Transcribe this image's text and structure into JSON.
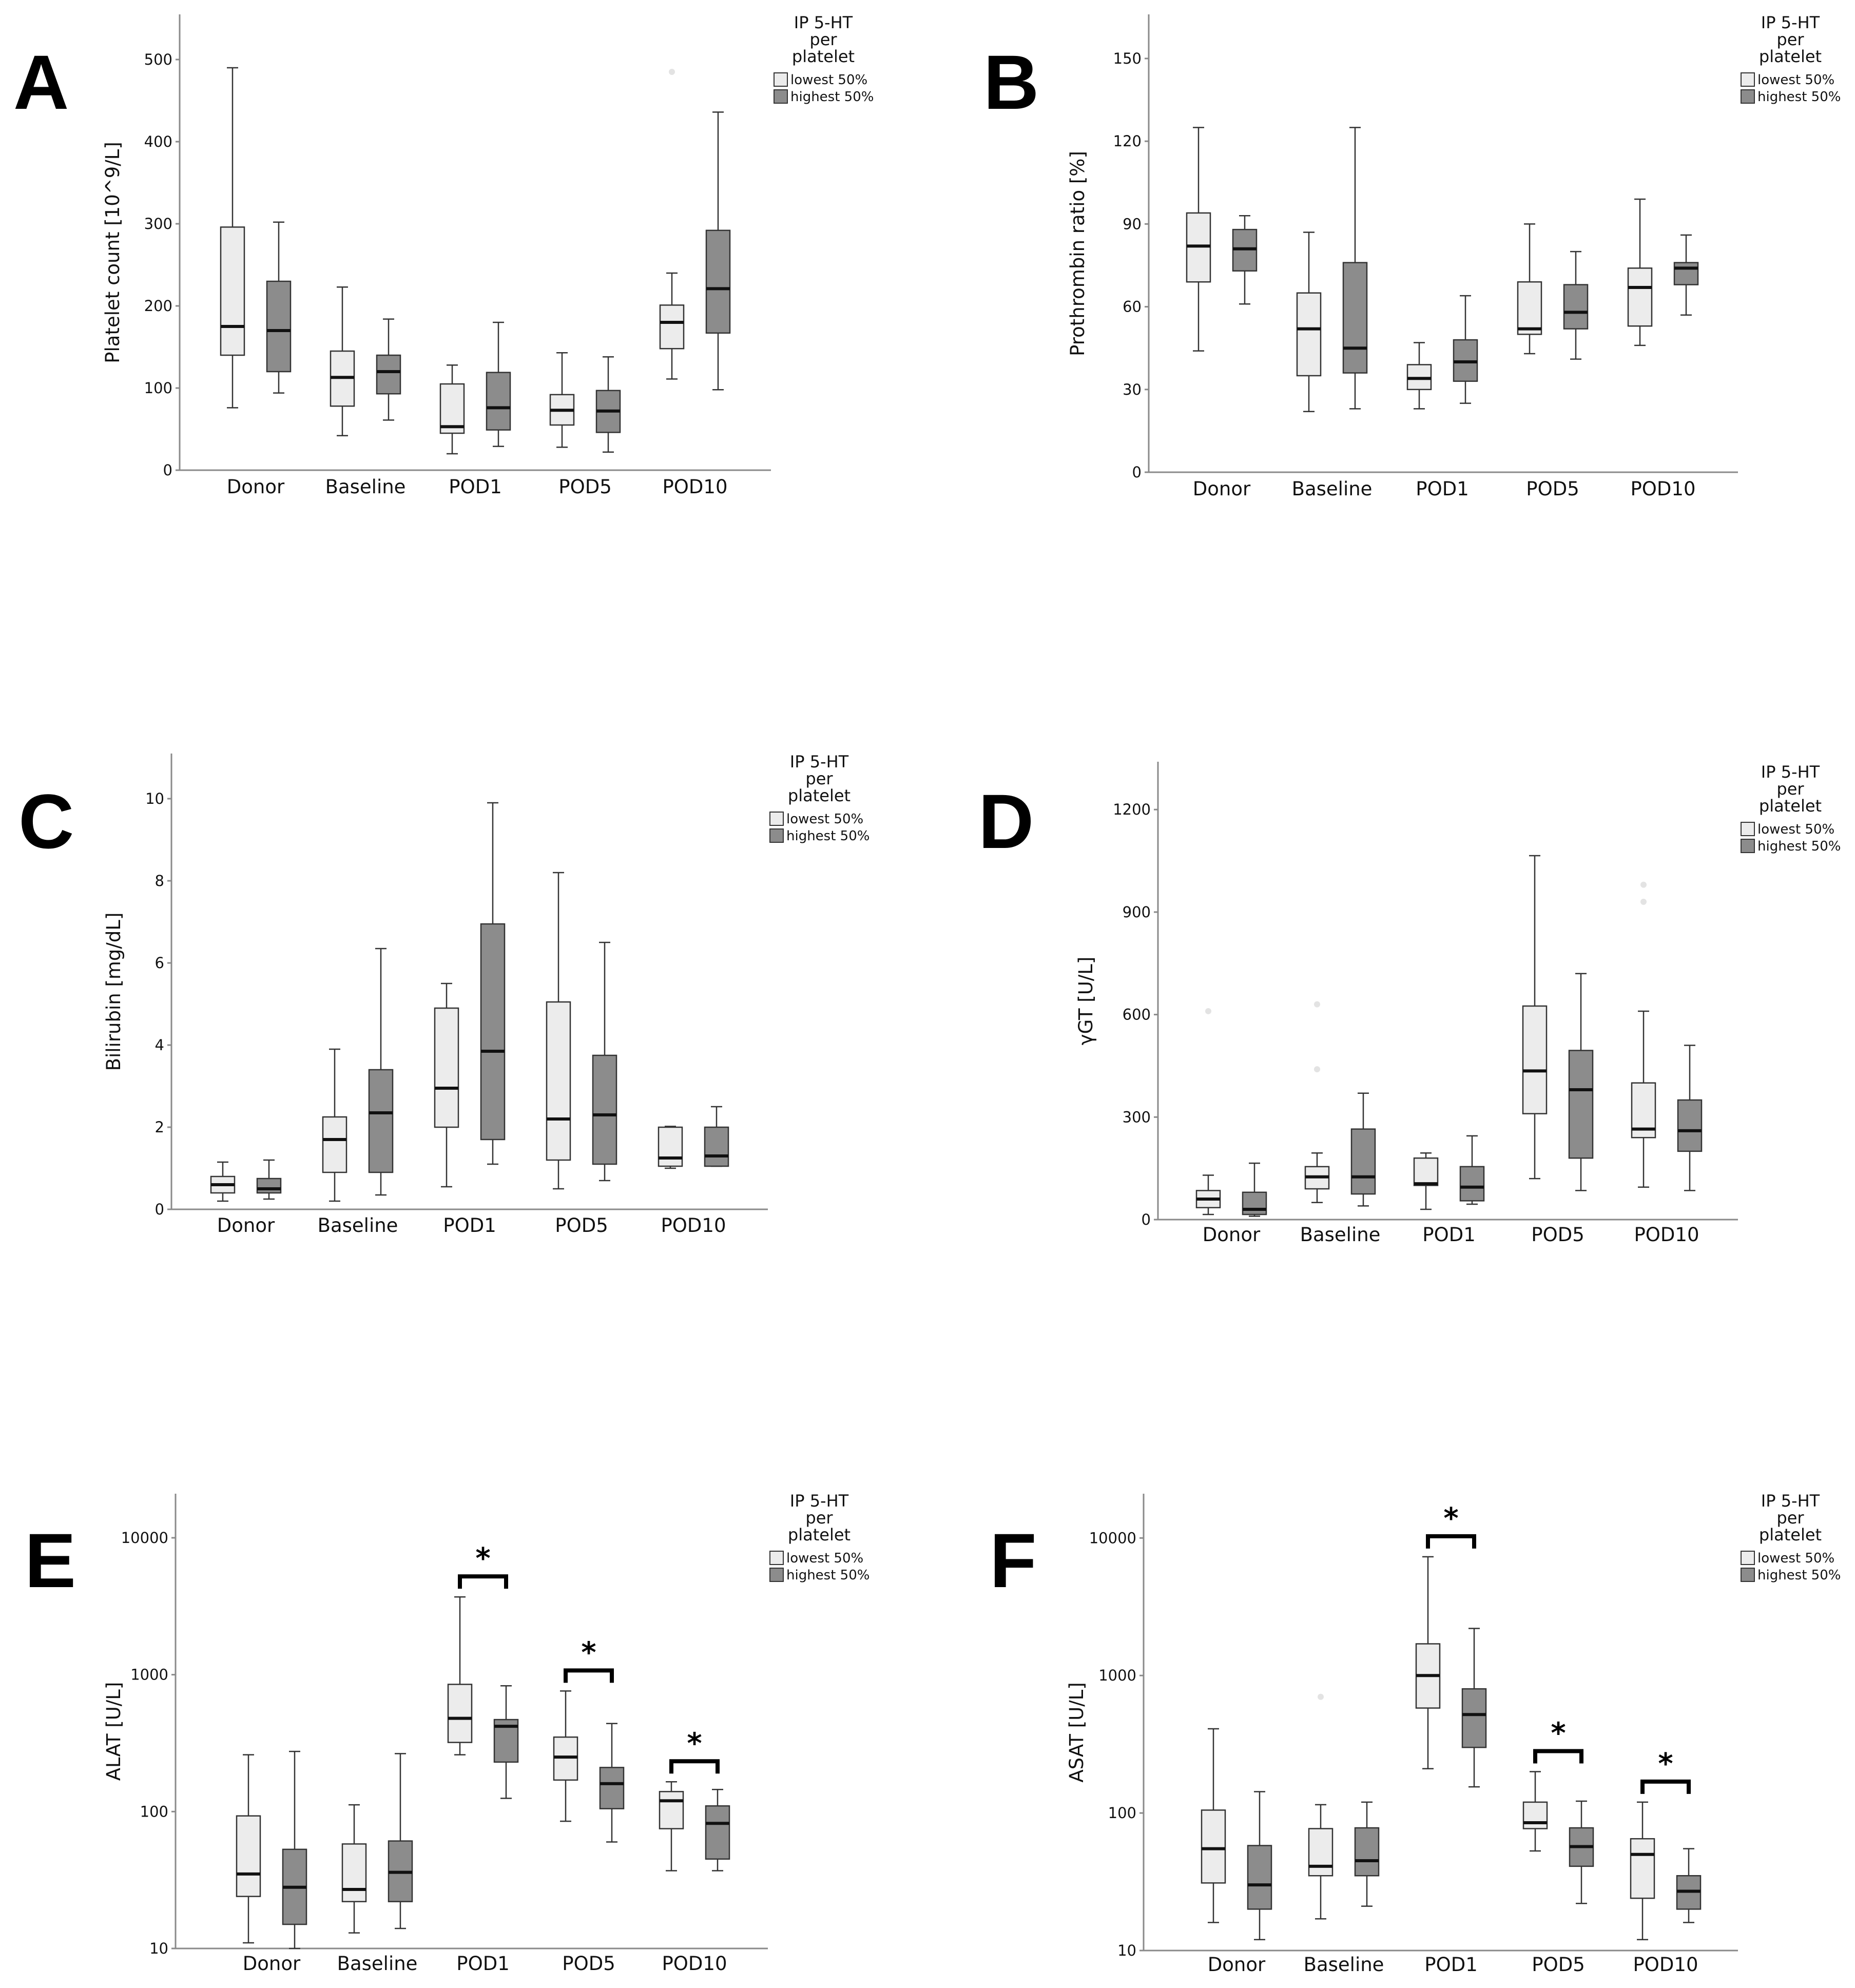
{
  "legend": {
    "title_lines": [
      "IP 5-HT",
      "per",
      "platelet"
    ],
    "entries": [
      "lowest 50%",
      "highest 50%"
    ]
  },
  "colors": {
    "lowest": "#ececec",
    "highest": "#8c8c8c"
  },
  "chart_data": [
    {
      "id": "A",
      "type": "boxplot",
      "categories": [
        "Donor",
        "Baseline",
        "POD1",
        "POD5",
        "POD10"
      ],
      "ylabel": "Platelet count [10^9/L]",
      "scale": "linear",
      "ylim": [
        0,
        555
      ],
      "yticks": [
        0,
        100,
        200,
        300,
        400,
        500
      ],
      "ytick_labels": [
        "0",
        "100",
        "200",
        "300",
        "400",
        "500"
      ],
      "series": [
        {
          "name": "lowest 50%",
          "boxes": [
            {
              "min": 76,
              "q1": 140,
              "median": 175,
              "q3": 296,
              "max": 490
            },
            {
              "min": 42,
              "q1": 78,
              "median": 113,
              "q3": 145,
              "max": 223
            },
            {
              "min": 20,
              "q1": 45,
              "median": 53,
              "q3": 105,
              "max": 128
            },
            {
              "min": 28,
              "q1": 55,
              "median": 73,
              "q3": 92,
              "max": 143
            },
            {
              "min": 111,
              "q1": 148,
              "median": 180,
              "q3": 201,
              "max": 240
            }
          ]
        },
        {
          "name": "highest 50%",
          "boxes": [
            {
              "min": 94,
              "q1": 120,
              "median": 170,
              "q3": 230,
              "max": 302
            },
            {
              "min": 61,
              "q1": 93,
              "median": 120,
              "q3": 140,
              "max": 184
            },
            {
              "min": 29,
              "q1": 49,
              "median": 76,
              "q3": 119,
              "max": 180
            },
            {
              "min": 22,
              "q1": 46,
              "median": 72,
              "q3": 97,
              "max": 138
            },
            {
              "min": 98,
              "q1": 167,
              "median": 221,
              "q3": 292,
              "max": 436
            }
          ]
        }
      ],
      "outliers": [
        {
          "category": "POD10",
          "series": "lowest 50%",
          "value": 485
        }
      ],
      "significance": []
    },
    {
      "id": "B",
      "type": "boxplot",
      "categories": [
        "Donor",
        "Baseline",
        "POD1",
        "POD5",
        "POD10"
      ],
      "ylabel": "Prothrombin ratio [%]",
      "scale": "linear",
      "ylim": [
        0,
        166
      ],
      "yticks": [
        0,
        30,
        60,
        90,
        120,
        150
      ],
      "ytick_labels": [
        "0",
        "30",
        "60",
        "90",
        "120",
        "150"
      ],
      "series": [
        {
          "name": "lowest 50%",
          "boxes": [
            {
              "min": 44,
              "q1": 69,
              "median": 82,
              "q3": 94,
              "max": 125
            },
            {
              "min": 22,
              "q1": 35,
              "median": 52,
              "q3": 65,
              "max": 87
            },
            {
              "min": 23,
              "q1": 30,
              "median": 34,
              "q3": 39,
              "max": 47
            },
            {
              "min": 43,
              "q1": 50,
              "median": 52,
              "q3": 69,
              "max": 90
            },
            {
              "min": 46,
              "q1": 53,
              "median": 67,
              "q3": 74,
              "max": 99
            }
          ]
        },
        {
          "name": "highest 50%",
          "boxes": [
            {
              "min": 61,
              "q1": 73,
              "median": 81,
              "q3": 88,
              "max": 93
            },
            {
              "min": 23,
              "q1": 36,
              "median": 45,
              "q3": 76,
              "max": 125
            },
            {
              "min": 25,
              "q1": 33,
              "median": 40,
              "q3": 48,
              "max": 64
            },
            {
              "min": 41,
              "q1": 52,
              "median": 58,
              "q3": 68,
              "max": 80
            },
            {
              "min": 57,
              "q1": 68,
              "median": 74,
              "q3": 76,
              "max": 86
            }
          ]
        }
      ],
      "outliers": [],
      "significance": []
    },
    {
      "id": "C",
      "type": "boxplot",
      "categories": [
        "Donor",
        "Baseline",
        "POD1",
        "POD5",
        "POD10"
      ],
      "ylabel": "Bilirubin [mg/dL]",
      "scale": "linear",
      "ylim": [
        0,
        11.1
      ],
      "yticks": [
        0,
        2,
        4,
        6,
        8,
        10
      ],
      "ytick_labels": [
        "0",
        "2",
        "4",
        "6",
        "8",
        "10"
      ],
      "series": [
        {
          "name": "lowest 50%",
          "boxes": [
            {
              "min": 0.2,
              "q1": 0.4,
              "median": 0.6,
              "q3": 0.8,
              "max": 1.15
            },
            {
              "min": 0.2,
              "q1": 0.9,
              "median": 1.7,
              "q3": 2.25,
              "max": 3.9
            },
            {
              "min": 0.55,
              "q1": 2.0,
              "median": 2.95,
              "q3": 4.9,
              "max": 5.5
            },
            {
              "min": 0.5,
              "q1": 1.2,
              "median": 2.2,
              "q3": 5.05,
              "max": 8.2
            },
            {
              "min": 1.0,
              "q1": 1.05,
              "median": 1.25,
              "q3": 2.0,
              "max": 2.02
            }
          ]
        },
        {
          "name": "highest 50%",
          "boxes": [
            {
              "min": 0.25,
              "q1": 0.4,
              "median": 0.5,
              "q3": 0.75,
              "max": 1.2
            },
            {
              "min": 0.35,
              "q1": 0.9,
              "median": 2.35,
              "q3": 3.4,
              "max": 6.35
            },
            {
              "min": 1.1,
              "q1": 1.7,
              "median": 3.85,
              "q3": 6.95,
              "max": 9.9
            },
            {
              "min": 0.7,
              "q1": 1.1,
              "median": 2.3,
              "q3": 3.75,
              "max": 6.5
            },
            {
              "min": 1.05,
              "q1": 1.05,
              "median": 1.3,
              "q3": 2.0,
              "max": 2.5
            }
          ]
        }
      ],
      "outliers": [],
      "significance": []
    },
    {
      "id": "D",
      "type": "boxplot",
      "categories": [
        "Donor",
        "Baseline",
        "POD1",
        "POD5",
        "POD10"
      ],
      "ylabel": "γGT [U/L]",
      "scale": "linear",
      "ylim": [
        0,
        1340
      ],
      "yticks": [
        0,
        300,
        600,
        900,
        1200
      ],
      "ytick_labels": [
        "0",
        "300",
        "600",
        "900",
        "1200"
      ],
      "series": [
        {
          "name": "lowest 50%",
          "boxes": [
            {
              "min": 15,
              "q1": 35,
              "median": 60,
              "q3": 85,
              "max": 130
            },
            {
              "min": 50,
              "q1": 90,
              "median": 125,
              "q3": 155,
              "max": 195
            },
            {
              "min": 30,
              "q1": 100,
              "median": 105,
              "q3": 180,
              "max": 195
            },
            {
              "min": 120,
              "q1": 310,
              "median": 435,
              "q3": 625,
              "max": 1065
            },
            {
              "min": 95,
              "q1": 240,
              "median": 265,
              "q3": 400,
              "max": 610
            }
          ]
        },
        {
          "name": "highest 50%",
          "boxes": [
            {
              "min": 10,
              "q1": 15,
              "median": 30,
              "q3": 80,
              "max": 165
            },
            {
              "min": 40,
              "q1": 75,
              "median": 125,
              "q3": 265,
              "max": 370
            },
            {
              "min": 45,
              "q1": 55,
              "median": 95,
              "q3": 155,
              "max": 245
            },
            {
              "min": 85,
              "q1": 180,
              "median": 380,
              "q3": 495,
              "max": 720
            },
            {
              "min": 85,
              "q1": 200,
              "median": 260,
              "q3": 350,
              "max": 510
            }
          ]
        }
      ],
      "outliers": [
        {
          "category": "Donor",
          "series": "lowest 50%",
          "value": 610
        },
        {
          "category": "Baseline",
          "series": "lowest 50%",
          "value": 440
        },
        {
          "category": "Baseline",
          "series": "lowest 50%",
          "value": 630
        },
        {
          "category": "POD10",
          "series": "lowest 50%",
          "value": 930
        },
        {
          "category": "POD10",
          "series": "lowest 50%",
          "value": 980
        }
      ],
      "significance": []
    },
    {
      "id": "E",
      "type": "boxplot",
      "categories": [
        "Donor",
        "Baseline",
        "POD1",
        "POD5",
        "POD10"
      ],
      "ylabel": "ALAT [U/L]",
      "scale": "log",
      "ylim": [
        10,
        21000
      ],
      "yticks": [
        10,
        100,
        1000,
        10000
      ],
      "ytick_labels": [
        "10",
        "100",
        "1000",
        "10000"
      ],
      "series": [
        {
          "name": "lowest 50%",
          "boxes": [
            {
              "min": 11,
              "q1": 24,
              "median": 35,
              "q3": 93,
              "max": 260
            },
            {
              "min": 13,
              "q1": 22,
              "median": 27,
              "q3": 58,
              "max": 112
            },
            {
              "min": 260,
              "q1": 320,
              "median": 480,
              "q3": 850,
              "max": 3700
            },
            {
              "min": 85,
              "q1": 170,
              "median": 250,
              "q3": 350,
              "max": 760
            },
            {
              "min": 37,
              "q1": 75,
              "median": 120,
              "q3": 140,
              "max": 165
            }
          ]
        },
        {
          "name": "highest 50%",
          "boxes": [
            {
              "min": 10,
              "q1": 15,
              "median": 28,
              "q3": 53,
              "max": 275
            },
            {
              "min": 14,
              "q1": 22,
              "median": 36,
              "q3": 61,
              "max": 265
            },
            {
              "min": 125,
              "q1": 230,
              "median": 420,
              "q3": 470,
              "max": 830
            },
            {
              "min": 60,
              "q1": 105,
              "median": 160,
              "q3": 210,
              "max": 440
            },
            {
              "min": 37,
              "q1": 45,
              "median": 82,
              "q3": 110,
              "max": 145
            }
          ]
        }
      ],
      "outliers": [],
      "significance": [
        {
          "category": "POD1",
          "label": "*"
        },
        {
          "category": "POD5",
          "label": "*"
        },
        {
          "category": "POD10",
          "label": "*"
        }
      ]
    },
    {
      "id": "F",
      "type": "boxplot",
      "categories": [
        "Donor",
        "Baseline",
        "POD1",
        "POD5",
        "POD10"
      ],
      "ylabel": "ASAT [U/L]",
      "scale": "log",
      "ylim": [
        10,
        21000
      ],
      "yticks": [
        10,
        100,
        1000,
        10000
      ],
      "ytick_labels": [
        "10",
        "100",
        "1000",
        "10000"
      ],
      "series": [
        {
          "name": "lowest 50%",
          "boxes": [
            {
              "min": 16,
              "q1": 31,
              "median": 55,
              "q3": 105,
              "max": 410
            },
            {
              "min": 17,
              "q1": 35,
              "median": 41,
              "q3": 77,
              "max": 115
            },
            {
              "min": 210,
              "q1": 580,
              "median": 1000,
              "q3": 1700,
              "max": 7300
            },
            {
              "min": 53,
              "q1": 77,
              "median": 85,
              "q3": 120,
              "max": 200
            },
            {
              "min": 12,
              "q1": 24,
              "median": 50,
              "q3": 65,
              "max": 120
            }
          ]
        },
        {
          "name": "highest 50%",
          "boxes": [
            {
              "min": 12,
              "q1": 20,
              "median": 30,
              "q3": 58,
              "max": 143
            },
            {
              "min": 21,
              "q1": 35,
              "median": 45,
              "q3": 78,
              "max": 120
            },
            {
              "min": 155,
              "q1": 300,
              "median": 520,
              "q3": 800,
              "max": 2200
            },
            {
              "min": 22,
              "q1": 41,
              "median": 57,
              "q3": 78,
              "max": 122
            },
            {
              "min": 16,
              "q1": 20,
              "median": 27,
              "q3": 35,
              "max": 55
            }
          ]
        }
      ],
      "outliers": [
        {
          "category": "Baseline",
          "series": "lowest 50%",
          "value": 700
        }
      ],
      "significance": [
        {
          "category": "POD1",
          "label": "*"
        },
        {
          "category": "POD5",
          "label": "*"
        },
        {
          "category": "POD10",
          "label": "*"
        }
      ]
    }
  ]
}
